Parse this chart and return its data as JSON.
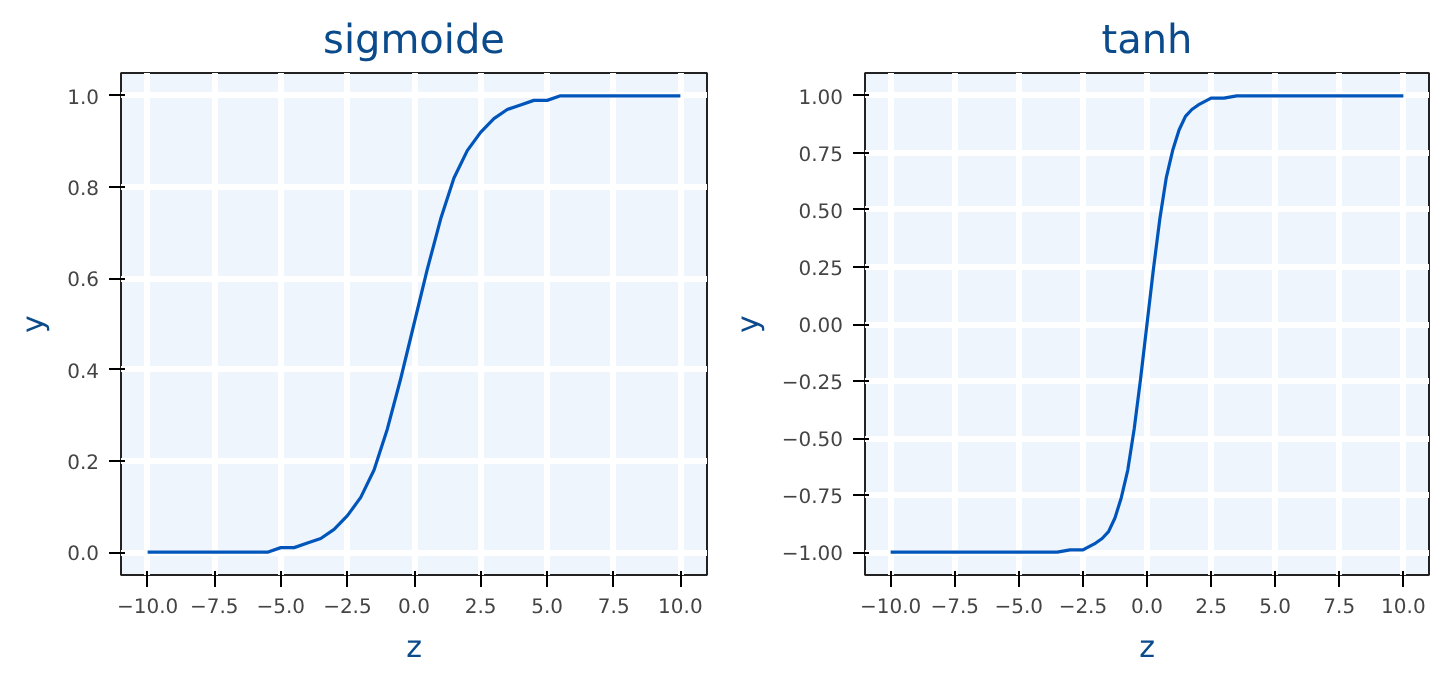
{
  "chart_data": [
    {
      "type": "line",
      "title": "sigmoide",
      "xlabel": "z",
      "ylabel": "y",
      "xlim": [
        -11,
        11
      ],
      "ylim": [
        -0.05,
        1.05
      ],
      "xticks": [
        {
          "value": -10,
          "label": "−10.0"
        },
        {
          "value": -7.5,
          "label": "−7.5"
        },
        {
          "value": -5,
          "label": "−5.0"
        },
        {
          "value": -2.5,
          "label": "−2.5"
        },
        {
          "value": 0,
          "label": "0.0"
        },
        {
          "value": 2.5,
          "label": "2.5"
        },
        {
          "value": 5,
          "label": "5.0"
        },
        {
          "value": 7.5,
          "label": "7.5"
        },
        {
          "value": 10,
          "label": "10.0"
        }
      ],
      "yticks": [
        {
          "value": 0,
          "label": "0.0"
        },
        {
          "value": 0.2,
          "label": "0.2"
        },
        {
          "value": 0.4,
          "label": "0.4"
        },
        {
          "value": 0.6,
          "label": "0.6"
        },
        {
          "value": 0.8,
          "label": "0.8"
        },
        {
          "value": 1,
          "label": "1.0"
        }
      ],
      "grid": true,
      "line_style": "solid",
      "x": [
        -10,
        -9,
        -8,
        -7,
        -6,
        -5.5,
        -5,
        -4.5,
        -4,
        -3.5,
        -3,
        -2.5,
        -2,
        -1.5,
        -1,
        -0.5,
        0,
        0.5,
        1,
        1.5,
        2,
        2.5,
        3,
        3.5,
        4,
        4.5,
        5,
        5.5,
        6,
        7,
        8,
        9,
        10
      ],
      "series": [
        {
          "color": "#0055bb",
          "values": [
            0.0,
            0.0,
            0.0,
            0.0,
            0.0,
            0.0,
            0.01,
            0.01,
            0.02,
            0.03,
            0.05,
            0.08,
            0.12,
            0.18,
            0.27,
            0.38,
            0.5,
            0.62,
            0.73,
            0.82,
            0.88,
            0.92,
            0.95,
            0.97,
            0.98,
            0.99,
            0.99,
            1.0,
            1.0,
            1.0,
            1.0,
            1.0,
            1.0
          ]
        }
      ]
    },
    {
      "type": "line",
      "title": "tanh",
      "xlabel": "z",
      "ylabel": "y",
      "xlim": [
        -11,
        11
      ],
      "ylim": [
        -1.1,
        1.1
      ],
      "xticks": [
        {
          "value": -10,
          "label": "−10.0"
        },
        {
          "value": -7.5,
          "label": "−7.5"
        },
        {
          "value": -5,
          "label": "−5.0"
        },
        {
          "value": -2.5,
          "label": "−2.5"
        },
        {
          "value": 0,
          "label": "0.0"
        },
        {
          "value": 2.5,
          "label": "2.5"
        },
        {
          "value": 5,
          "label": "5.0"
        },
        {
          "value": 7.5,
          "label": "7.5"
        },
        {
          "value": 10,
          "label": "10.0"
        }
      ],
      "yticks": [
        {
          "value": -1,
          "label": "−1.00"
        },
        {
          "value": -0.75,
          "label": "−0.75"
        },
        {
          "value": -0.5,
          "label": "−0.50"
        },
        {
          "value": -0.25,
          "label": "−0.25"
        },
        {
          "value": 0,
          "label": "0.00"
        },
        {
          "value": 0.25,
          "label": "0.25"
        },
        {
          "value": 0.5,
          "label": "0.50"
        },
        {
          "value": 0.75,
          "label": "0.75"
        },
        {
          "value": 1,
          "label": "1.00"
        }
      ],
      "grid": true,
      "line_style": "solid",
      "x": [
        -10,
        -6,
        -4,
        -3.5,
        -3,
        -2.5,
        -2,
        -1.75,
        -1.5,
        -1.25,
        -1,
        -0.75,
        -0.5,
        -0.25,
        0,
        0.25,
        0.5,
        0.75,
        1,
        1.25,
        1.5,
        1.75,
        2,
        2.5,
        3,
        3.5,
        4,
        6,
        10
      ],
      "series": [
        {
          "color": "#0055bb",
          "values": [
            -1.0,
            -1.0,
            -1.0,
            -1.0,
            -0.99,
            -0.99,
            -0.96,
            -0.94,
            -0.91,
            -0.85,
            -0.76,
            -0.64,
            -0.46,
            -0.24,
            0.0,
            0.24,
            0.46,
            0.64,
            0.76,
            0.85,
            0.91,
            0.94,
            0.96,
            0.99,
            0.99,
            1.0,
            1.0,
            1.0,
            1.0
          ]
        }
      ]
    }
  ]
}
